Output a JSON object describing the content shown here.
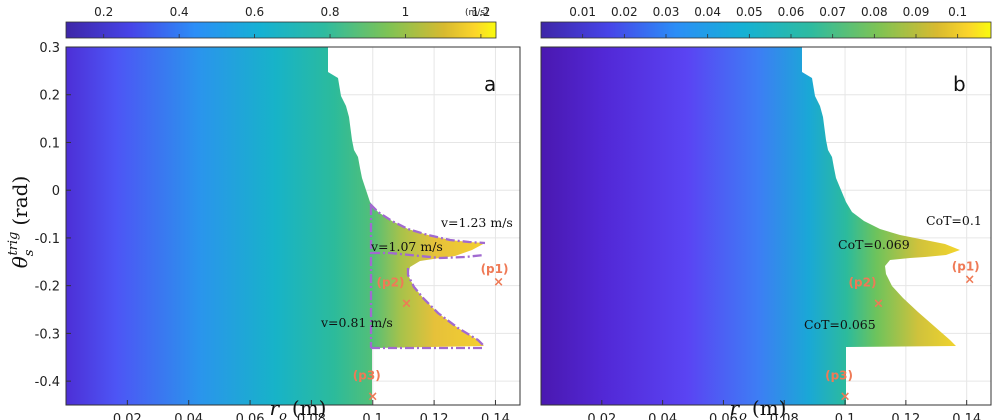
{
  "figure": {
    "y_label": "θ_s^trig (rad)",
    "y_label_main": "θ",
    "y_label_sub": "s",
    "y_label_sup": "trig",
    "y_label_unit": "(rad)",
    "colors": {
      "viridis": [
        "#3e26a8",
        "#4744e8",
        "#2b8ef7",
        "#15b1d4",
        "#2ebba0",
        "#7ec354",
        "#d8ba30",
        "#fbd52a",
        "#f9fb0e"
      ],
      "marker": "#ef7a56",
      "boundary": "#a16ad0",
      "grid": "#e6e6e6"
    }
  },
  "chart_data": [
    {
      "type": "heatmap",
      "panel_label": "a",
      "xlabel": "r_o (m)",
      "xlabel_main": "r",
      "xlabel_sub": "o",
      "xlabel_unit": "(m)",
      "xlim": [
        0.0,
        0.148
      ],
      "ylim": [
        -0.45,
        0.3
      ],
      "x_ticks": [
        "0.02",
        "0.04",
        "0.06",
        "0.08",
        "0.1",
        "0.12",
        "0.14"
      ],
      "y_ticks": [
        "0.3",
        "0.2",
        "0.1",
        "0",
        "-0.1",
        "-0.2",
        "-0.3",
        "-0.4"
      ],
      "grid": true,
      "colorbar": {
        "position": "top",
        "unit": "(m/s)",
        "range": [
          0.1,
          1.24
        ],
        "ticks": [
          "0.2",
          "0.4",
          "0.6",
          "0.8",
          "1",
          "1.2"
        ]
      },
      "points": [
        {
          "label": "(p1)",
          "r_o": 0.141,
          "theta": -0.19
        },
        {
          "label": "(p2)",
          "r_o": 0.111,
          "theta": -0.235
        },
        {
          "label": "(p3)",
          "r_o": 0.1,
          "theta": -0.43
        }
      ],
      "annotations": [
        "v=1.23 m/s",
        "v=1.07 m/s",
        "v=0.81 m/s"
      ]
    },
    {
      "type": "heatmap",
      "panel_label": "b",
      "xlabel": "r_o (m)",
      "xlabel_main": "r",
      "xlabel_sub": "o",
      "xlabel_unit": "(m)",
      "xlim": [
        0.0,
        0.148
      ],
      "ylim": [
        -0.45,
        0.3
      ],
      "x_ticks": [
        "0.02",
        "0.04",
        "0.06",
        "0.08",
        "0.1",
        "0.12",
        "0.14"
      ],
      "grid": true,
      "colorbar": {
        "position": "top",
        "range": [
          0.0,
          0.108
        ],
        "ticks": [
          "0.01",
          "0.02",
          "0.03",
          "0.04",
          "0.05",
          "0.06",
          "0.07",
          "0.08",
          "0.09",
          "0.1"
        ]
      },
      "points": [
        {
          "label": "(p1)",
          "r_o": 0.141,
          "theta": -0.185
        },
        {
          "label": "(p2)",
          "r_o": 0.111,
          "theta": -0.235
        },
        {
          "label": "(p3)",
          "r_o": 0.1,
          "theta": -0.43
        }
      ],
      "annotations": [
        "CoT=0.1",
        "CoT=0.069",
        "CoT=0.065"
      ]
    }
  ]
}
